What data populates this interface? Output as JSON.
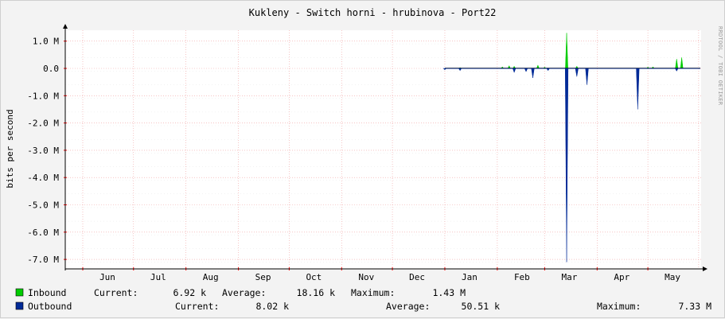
{
  "chart_data": {
    "type": "area",
    "title": "Kukleny - Switch horni - hrubinova - Port22",
    "ylabel": "bits per second",
    "watermark": "RRDTOOL / TOBI OETIKER",
    "y_ticks": [
      "1.0 M",
      "0.0",
      "-1.0 M",
      "-2.0 M",
      "-3.0 M",
      "-4.0 M",
      "-5.0 M",
      "-6.0 M",
      "-7.0 M"
    ],
    "y_tick_values": [
      1,
      0,
      -1,
      -2,
      -3,
      -4,
      -5,
      -6,
      -7
    ],
    "ylim": [
      -7.3,
      1.4
    ],
    "x_ticks": [
      "Jun",
      "Jul",
      "Aug",
      "Sep",
      "Oct",
      "Nov",
      "Dec",
      "Jan",
      "Feb",
      "Mar",
      "Apr",
      "May"
    ],
    "grid": true,
    "series": [
      {
        "name": "Inbound",
        "color": "#00cc00",
        "values": [
          {
            "x": "Jan 10",
            "y": 0.03
          },
          {
            "x": "Feb 4",
            "y": 0.06
          },
          {
            "x": "Feb 8",
            "y": 0.1
          },
          {
            "x": "Feb 11",
            "y": 0.08
          },
          {
            "x": "Feb 25",
            "y": 0.12
          },
          {
            "x": "Mar 1",
            "y": 0.05
          },
          {
            "x": "Mar 14",
            "y": 1.3
          },
          {
            "x": "Mar 20",
            "y": 0.08
          },
          {
            "x": "May 1",
            "y": 0.05
          },
          {
            "x": "May 4",
            "y": 0.06
          },
          {
            "x": "May 18",
            "y": 0.35
          },
          {
            "x": "May 21",
            "y": 0.4
          }
        ]
      },
      {
        "name": "Outbound",
        "color": "#002a97",
        "values": [
          {
            "x": "Jan 1",
            "y": -0.05
          },
          {
            "x": "Jan 10",
            "y": -0.08
          },
          {
            "x": "Feb 11",
            "y": -0.15
          },
          {
            "x": "Feb 18",
            "y": -0.12
          },
          {
            "x": "Feb 22",
            "y": -0.35
          },
          {
            "x": "Mar 3",
            "y": -0.08
          },
          {
            "x": "Mar 14",
            "y": -7.1
          },
          {
            "x": "Mar 20",
            "y": -0.3
          },
          {
            "x": "Mar 26",
            "y": -0.6
          },
          {
            "x": "Apr 25",
            "y": -1.5
          },
          {
            "x": "May 18",
            "y": -0.1
          }
        ]
      }
    ]
  },
  "legend": {
    "inbound": {
      "name": "Inbound",
      "current_label": "Current:",
      "current": "6.92 k",
      "average_label": "Average:",
      "average": "18.16 k",
      "maximum_label": "Maximum:",
      "maximum": "1.43 M",
      "color": "#00cc00"
    },
    "outbound": {
      "name": "Outbound",
      "current_label": "Current:",
      "current": "8.02 k",
      "average_label": "Average:",
      "average": "50.51 k",
      "maximum_label": "Maximum:",
      "maximum": "7.33 M",
      "color": "#002a97"
    }
  }
}
